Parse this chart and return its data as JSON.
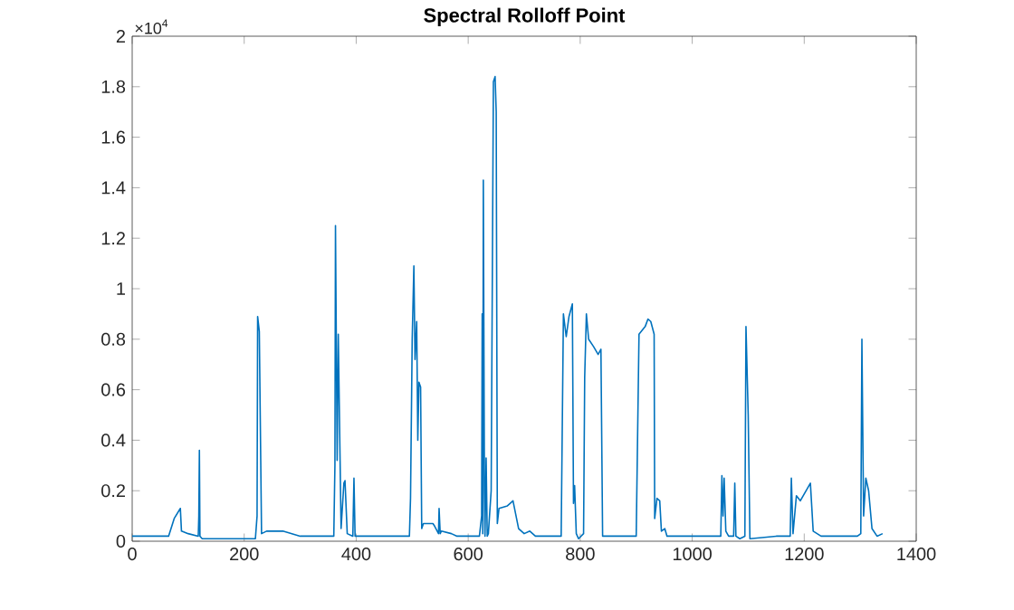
{
  "chart_data": {
    "type": "line",
    "title": "Spectral Rolloff Point",
    "annotations": [
      "×10$^{4}$"
    ],
    "xlim": [
      0,
      1400
    ],
    "ylim": [
      0,
      2
    ],
    "xticks": [
      0,
      200,
      400,
      600,
      800,
      1000,
      1200,
      1400
    ],
    "yticks": [
      0,
      0.2,
      0.4,
      0.6,
      0.8,
      1,
      1.2,
      1.4,
      1.6,
      1.8,
      2
    ],
    "grid": false,
    "series": [
      {
        "color": "#0072bd",
        "x": [
          0,
          20,
          40,
          60,
          65,
          75,
          86,
          88,
          100,
          118,
          119,
          120,
          121,
          125,
          160,
          220,
          223,
          224,
          227,
          231,
          240,
          269,
          300,
          360,
          362,
          363,
          366,
          368,
          373,
          378,
          380,
          384,
          394,
          396,
          398,
          450,
          495,
          497,
          500,
          503,
          505,
          508,
          510,
          512,
          515,
          517,
          520,
          537,
          540,
          547,
          548,
          550,
          552,
          570,
          580,
          600,
          620,
          624,
          625,
          626,
          627,
          629,
          630,
          632,
          634,
          636,
          641,
          645,
          648,
          650,
          652,
          655,
          670,
          680,
          690,
          700,
          710,
          720,
          766,
          770,
          775,
          780,
          786,
          788,
          790,
          793,
          797,
          806,
          808,
          811,
          815,
          824,
          832,
          837,
          840,
          860,
          900,
          905,
          916,
          921,
          926,
          932,
          933,
          937,
          942,
          945,
          951,
          955,
          1000,
          1051,
          1053,
          1055,
          1057,
          1060,
          1065,
          1074,
          1076,
          1078,
          1085,
          1094,
          1096,
          1100,
          1103,
          1150,
          1175,
          1177,
          1180,
          1186,
          1193,
          1211,
          1216,
          1230,
          1260,
          1295,
          1301,
          1303,
          1306,
          1310,
          1315,
          1321,
          1330,
          1340
        ],
        "values": [
          0.02,
          0.02,
          0.02,
          0.02,
          0.02,
          0.09,
          0.13,
          0.04,
          0.03,
          0.02,
          0.1,
          0.36,
          0.02,
          0.01,
          0.01,
          0.01,
          0.1,
          0.89,
          0.83,
          0.03,
          0.04,
          0.04,
          0.02,
          0.02,
          0.3,
          1.25,
          0.32,
          0.82,
          0.05,
          0.23,
          0.24,
          0.03,
          0.02,
          0.25,
          0.02,
          0.02,
          0.02,
          0.17,
          0.8,
          1.09,
          0.72,
          0.87,
          0.4,
          0.63,
          0.61,
          0.05,
          0.07,
          0.07,
          0.06,
          0.03,
          0.13,
          0.03,
          0.04,
          0.03,
          0.02,
          0.02,
          0.02,
          0.1,
          0.9,
          0.03,
          1.43,
          0.2,
          0.02,
          0.33,
          0.02,
          0.03,
          0.2,
          1.82,
          1.84,
          1.7,
          0.07,
          0.13,
          0.14,
          0.16,
          0.05,
          0.03,
          0.04,
          0.02,
          0.02,
          0.9,
          0.81,
          0.89,
          0.94,
          0.15,
          0.22,
          0.03,
          0.01,
          0.03,
          0.65,
          0.9,
          0.8,
          0.77,
          0.74,
          0.76,
          0.02,
          0.02,
          0.02,
          0.82,
          0.85,
          0.88,
          0.87,
          0.82,
          0.09,
          0.17,
          0.16,
          0.04,
          0.05,
          0.02,
          0.02,
          0.02,
          0.26,
          0.1,
          0.25,
          0.04,
          0.02,
          0.02,
          0.23,
          0.02,
          0.01,
          0.02,
          0.85,
          0.5,
          0.01,
          0.02,
          0.02,
          0.25,
          0.03,
          0.18,
          0.16,
          0.23,
          0.04,
          0.02,
          0.02,
          0.02,
          0.03,
          0.8,
          0.1,
          0.25,
          0.2,
          0.05,
          0.02,
          0.03
        ]
      }
    ]
  }
}
